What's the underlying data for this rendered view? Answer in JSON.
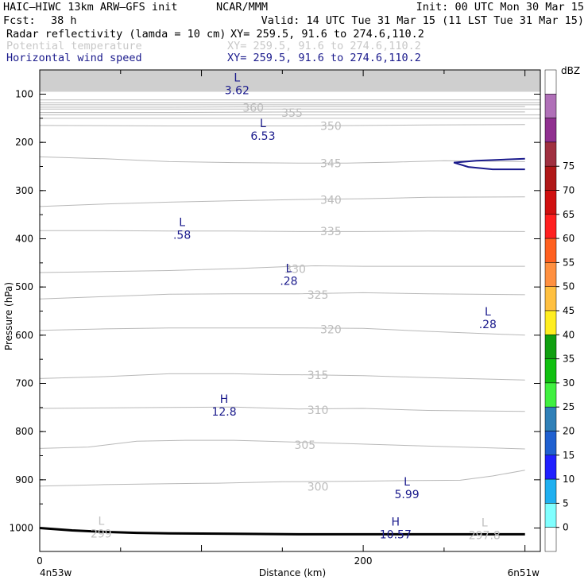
{
  "header": {
    "model": "HAIC–HIWC 13km ARW–GFS init",
    "org": "NCAR/MMM",
    "init": "Init: 00 UTC Mon 30 Mar 15",
    "fcst_label": "Fcst:",
    "fcst_value": "38 h",
    "valid": "Valid: 14 UTC Tue 31 Mar 15 (11 LST Tue 31 Mar 15)"
  },
  "fields": [
    {
      "label": "Radar reflectivity (lamda = 10 cm)",
      "xy": "XY= 259.5, 91.6 to 274.6,110.2",
      "color": "#000000"
    },
    {
      "label": "Potential temperature",
      "xy": "XY= 259.5, 91.6 to 274.6,110.2",
      "color": "#c8c8c8"
    },
    {
      "label": "Horizontal wind speed",
      "xy": "XY= 259.5, 91.6 to 274.6,110.2",
      "color": "#1a1a8c"
    }
  ],
  "chart_data": {
    "type": "cross-section",
    "xlabel": "Distance (km)",
    "ylabel": "Pressure (hPa)",
    "xlim": [
      0,
      300
    ],
    "ylim": [
      1050,
      50
    ],
    "x_ticks": [
      0,
      200
    ],
    "y_ticks": [
      100,
      200,
      300,
      400,
      500,
      600,
      700,
      800,
      900,
      1000
    ],
    "x_endpoint_labels": [
      "4n53w",
      "6n51w"
    ],
    "colorbar": {
      "unit": "dBZ",
      "levels": [
        0,
        5,
        10,
        15,
        20,
        25,
        30,
        35,
        40,
        45,
        50,
        55,
        60,
        65,
        70,
        75
      ],
      "colors": [
        "#ffffff",
        "#80ffff",
        "#20b0f0",
        "#2020ff",
        "#2060d0",
        "#3080b8",
        "#40f040",
        "#10c010",
        "#10a010",
        "#ffee20",
        "#ffc040",
        "#ff9040",
        "#ff6020",
        "#ff2020",
        "#d01010",
        "#b01818",
        "#a03040",
        "#903090",
        "#b070b8",
        "#ffffff"
      ]
    },
    "theta_contours": [
      {
        "value": 297.8,
        "points": [
          [
            0,
            1000
          ],
          [
            300,
            1000
          ]
        ],
        "label_show": false
      },
      {
        "value": 300,
        "label": "300",
        "points": [
          [
            0,
            913
          ],
          [
            40,
            910
          ],
          [
            80,
            908
          ],
          [
            110,
            907
          ],
          [
            150,
            904
          ],
          [
            190,
            903
          ],
          [
            220,
            902
          ],
          [
            260,
            901
          ],
          [
            280,
            892
          ],
          [
            300,
            880
          ]
        ]
      },
      {
        "value": 305,
        "label": "305",
        "points": [
          [
            0,
            835
          ],
          [
            30,
            832
          ],
          [
            60,
            820
          ],
          [
            90,
            818
          ],
          [
            120,
            818
          ],
          [
            140,
            820
          ],
          [
            160,
            822
          ],
          [
            200,
            826
          ],
          [
            240,
            830
          ],
          [
            280,
            834
          ],
          [
            300,
            836
          ]
        ]
      },
      {
        "value": 310,
        "label": "310",
        "points": [
          [
            0,
            752
          ],
          [
            40,
            751
          ],
          [
            80,
            750
          ],
          [
            120,
            749
          ],
          [
            160,
            753
          ],
          [
            200,
            752
          ],
          [
            240,
            756
          ],
          [
            300,
            758
          ]
        ]
      },
      {
        "value": 315,
        "label": "315",
        "points": [
          [
            0,
            690
          ],
          [
            40,
            686
          ],
          [
            80,
            680
          ],
          [
            120,
            680
          ],
          [
            150,
            682
          ],
          [
            160,
            682
          ],
          [
            200,
            684
          ],
          [
            240,
            688
          ],
          [
            300,
            693
          ]
        ]
      },
      {
        "value": 320,
        "label": "320",
        "points": [
          [
            0,
            590
          ],
          [
            40,
            587
          ],
          [
            80,
            585
          ],
          [
            120,
            585
          ],
          [
            160,
            585
          ],
          [
            200,
            586
          ],
          [
            240,
            592
          ],
          [
            300,
            600
          ]
        ]
      },
      {
        "value": 325,
        "label": "325",
        "points": [
          [
            0,
            525
          ],
          [
            40,
            520
          ],
          [
            80,
            515
          ],
          [
            120,
            514
          ],
          [
            160,
            514
          ],
          [
            200,
            512
          ],
          [
            240,
            514
          ],
          [
            300,
            516
          ]
        ]
      },
      {
        "value": 330,
        "label": "330",
        "points": [
          [
            0,
            470
          ],
          [
            40,
            468
          ],
          [
            80,
            466
          ],
          [
            120,
            462
          ],
          [
            150,
            458
          ],
          [
            170,
            456
          ],
          [
            200,
            457
          ],
          [
            240,
            457
          ],
          [
            300,
            457
          ]
        ]
      },
      {
        "value": 335,
        "label": "335",
        "points": [
          [
            0,
            383
          ],
          [
            40,
            383
          ],
          [
            80,
            384
          ],
          [
            120,
            384
          ],
          [
            160,
            385
          ],
          [
            200,
            385
          ],
          [
            240,
            384
          ],
          [
            300,
            385
          ]
        ]
      },
      {
        "value": 340,
        "label": "340",
        "points": [
          [
            0,
            333
          ],
          [
            40,
            328
          ],
          [
            80,
            324
          ],
          [
            120,
            321
          ],
          [
            170,
            318
          ],
          [
            200,
            317
          ],
          [
            240,
            314
          ],
          [
            300,
            313
          ]
        ]
      },
      {
        "value": 345,
        "label": "345",
        "points": [
          [
            0,
            230
          ],
          [
            40,
            234
          ],
          [
            80,
            240
          ],
          [
            120,
            242
          ],
          [
            160,
            243
          ],
          [
            190,
            243
          ],
          [
            220,
            241
          ],
          [
            250,
            238
          ],
          [
            300,
            240
          ]
        ]
      },
      {
        "value": 350,
        "label": "350",
        "points": [
          [
            0,
            165
          ],
          [
            80,
            166
          ],
          [
            160,
            166
          ],
          [
            240,
            164
          ],
          [
            300,
            163
          ]
        ]
      },
      {
        "value": 355,
        "label": "355",
        "points": [
          [
            0,
            138
          ],
          [
            80,
            138
          ],
          [
            160,
            137
          ],
          [
            240,
            137
          ],
          [
            300,
            137
          ]
        ]
      },
      {
        "value": 360,
        "label": "360",
        "points": [
          [
            0,
            127
          ],
          [
            80,
            127
          ],
          [
            160,
            126
          ],
          [
            240,
            126
          ],
          [
            300,
            126
          ]
        ]
      }
    ],
    "theta_extra_lines": [
      112,
      118,
      122,
      131,
      143,
      150
    ],
    "theta_labels": [
      {
        "text": "300",
        "x": 172,
        "p": 914
      },
      {
        "text": "305",
        "x": 164,
        "p": 828
      },
      {
        "text": "310",
        "x": 172,
        "p": 755
      },
      {
        "text": "315",
        "x": 172,
        "p": 683
      },
      {
        "text": "320",
        "x": 180,
        "p": 588
      },
      {
        "text": "325",
        "x": 172,
        "p": 516
      },
      {
        "text": "330",
        "x": 158,
        "p": 463
      },
      {
        "text": "335",
        "x": 180,
        "p": 384
      },
      {
        "text": "340",
        "x": 180,
        "p": 319
      },
      {
        "text": "345",
        "x": 180,
        "p": 243
      },
      {
        "text": "350",
        "x": 180,
        "p": 166
      },
      {
        "text": "355",
        "x": 156,
        "p": 139
      },
      {
        "text": "360",
        "x": 132,
        "p": 128
      }
    ],
    "theta_extremes": [
      {
        "letter": "L",
        "value": "299",
        "x": 38,
        "p": 1000
      },
      {
        "letter": "L",
        "value": "297.8",
        "x": 275,
        "p": 1003
      }
    ],
    "wind_extremes": [
      {
        "letter": "L",
        "value": "3.62",
        "x": 122,
        "p": 80
      },
      {
        "letter": "L",
        "value": "6.53",
        "x": 138,
        "p": 175
      },
      {
        "letter": "L",
        "value": ".58",
        "x": 88,
        "p": 380
      },
      {
        "letter": "L",
        "value": ".28",
        "x": 154,
        "p": 476
      },
      {
        "letter": "L",
        "value": ".28",
        "x": 277,
        "p": 566
      },
      {
        "letter": "H",
        "value": "12.8",
        "x": 114,
        "p": 747
      },
      {
        "letter": "L",
        "value": "5.99",
        "x": 227,
        "p": 918
      },
      {
        "letter": "H",
        "value": "10.57",
        "x": 220,
        "p": 1002
      }
    ],
    "wind_contour": {
      "points": [
        [
          300,
          234
        ],
        [
          270,
          238
        ],
        [
          256,
          242
        ],
        [
          265,
          251
        ],
        [
          280,
          256
        ],
        [
          300,
          256
        ]
      ]
    },
    "terrain": [
      [
        0,
        1000
      ],
      [
        20,
        1005
      ],
      [
        40,
        1008
      ],
      [
        60,
        1010
      ],
      [
        80,
        1011
      ],
      [
        120,
        1012
      ],
      [
        160,
        1013
      ],
      [
        200,
        1013
      ],
      [
        240,
        1013
      ],
      [
        300,
        1013
      ]
    ]
  }
}
